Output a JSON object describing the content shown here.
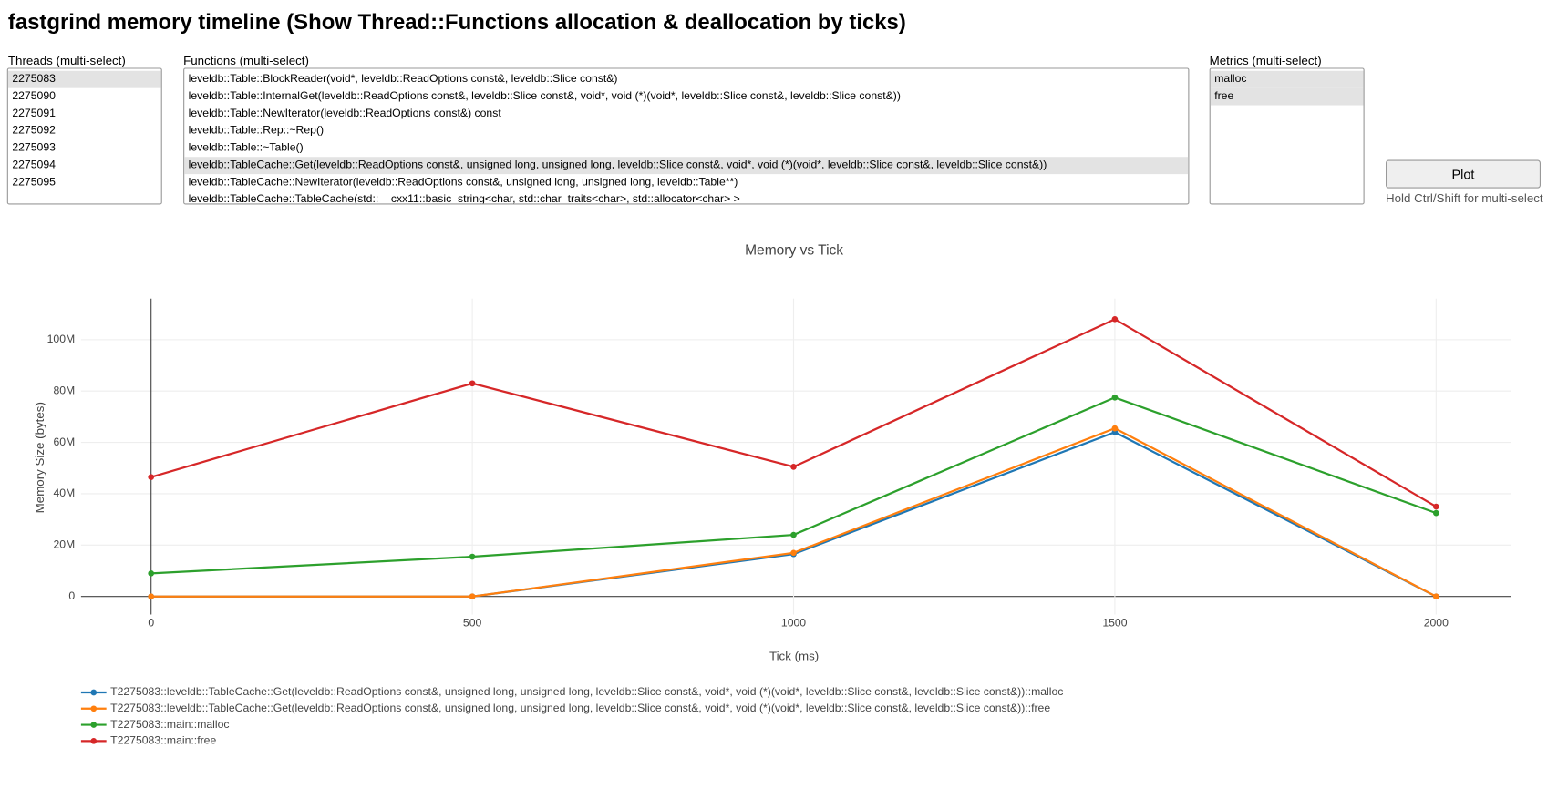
{
  "header": {
    "title": "fastgrind memory timeline (Show Thread::Functions allocation & deallocation by ticks)"
  },
  "threads": {
    "label": "Threads (multi-select)",
    "options": [
      "2275083",
      "2275090",
      "2275091",
      "2275092",
      "2275093",
      "2275094",
      "2275095"
    ],
    "selected": [
      0
    ]
  },
  "functions": {
    "label": "Functions (multi-select)",
    "options": [
      "leveldb::Table::BlockReader(void*, leveldb::ReadOptions const&, leveldb::Slice const&)",
      "leveldb::Table::InternalGet(leveldb::ReadOptions const&, leveldb::Slice const&, void*, void (*)(void*, leveldb::Slice const&, leveldb::Slice const&))",
      "leveldb::Table::NewIterator(leveldb::ReadOptions const&) const",
      "leveldb::Table::Rep::~Rep()",
      "leveldb::Table::~Table()",
      "leveldb::TableCache::Get(leveldb::ReadOptions const&, unsigned long, unsigned long, leveldb::Slice const&, void*, void (*)(void*, leveldb::Slice const&, leveldb::Slice const&))",
      "leveldb::TableCache::NewIterator(leveldb::ReadOptions const&, unsigned long, unsigned long, leveldb::Table**)",
      "leveldb::TableCache::TableCache(std::__cxx11::basic_string<char, std::char_traits<char>, std::allocator<char> >"
    ],
    "selected": [
      5
    ]
  },
  "metrics": {
    "label": "Metrics (multi-select)",
    "options": [
      "malloc",
      "free"
    ],
    "selected": [
      0,
      1
    ]
  },
  "plot_button": "Plot",
  "hint": "Hold Ctrl/Shift for multi-select",
  "chart_data": {
    "type": "line",
    "title": "Memory vs Tick",
    "x_label": "Tick (ms)",
    "y_label": "Memory Size (bytes)",
    "x": [
      0,
      500,
      1000,
      1500,
      2000
    ],
    "series": [
      {
        "name": "T2275083::leveldb::TableCache::Get(leveldb::ReadOptions const&, unsigned long, unsigned long, leveldb::Slice const&, void*, void (*)(void*, leveldb::Slice const&, leveldb::Slice const&))::malloc",
        "color": "#1f77b4",
        "values": [
          0,
          0,
          16500000,
          64000000,
          0
        ]
      },
      {
        "name": "T2275083::leveldb::TableCache::Get(leveldb::ReadOptions const&, unsigned long, unsigned long, leveldb::Slice const&, void*, void (*)(void*, leveldb::Slice const&, leveldb::Slice const&))::free",
        "color": "#ff7f0e",
        "values": [
          0,
          0,
          17000000,
          65500000,
          0
        ]
      },
      {
        "name": "T2275083::main::malloc",
        "color": "#2ca02c",
        "values": [
          9000000,
          15500000,
          24000000,
          77500000,
          32500000
        ]
      },
      {
        "name": "T2275083::main::free",
        "color": "#d62728",
        "values": [
          46500000,
          83000000,
          50500000,
          108000000,
          35000000
        ]
      }
    ],
    "xlim": [
      -109,
      2117
    ],
    "xticks": [
      0,
      500,
      1000,
      1500,
      2000
    ],
    "ylim": [
      -7000000,
      116000000
    ],
    "yticks": [
      0,
      {
        "value": 20000000,
        "label": "20M"
      },
      {
        "value": 40000000,
        "label": "40M"
      },
      {
        "value": 60000000,
        "label": "60M"
      },
      {
        "value": 80000000,
        "label": "80M"
      },
      {
        "value": 100000000,
        "label": "100M"
      }
    ],
    "grid": true
  }
}
